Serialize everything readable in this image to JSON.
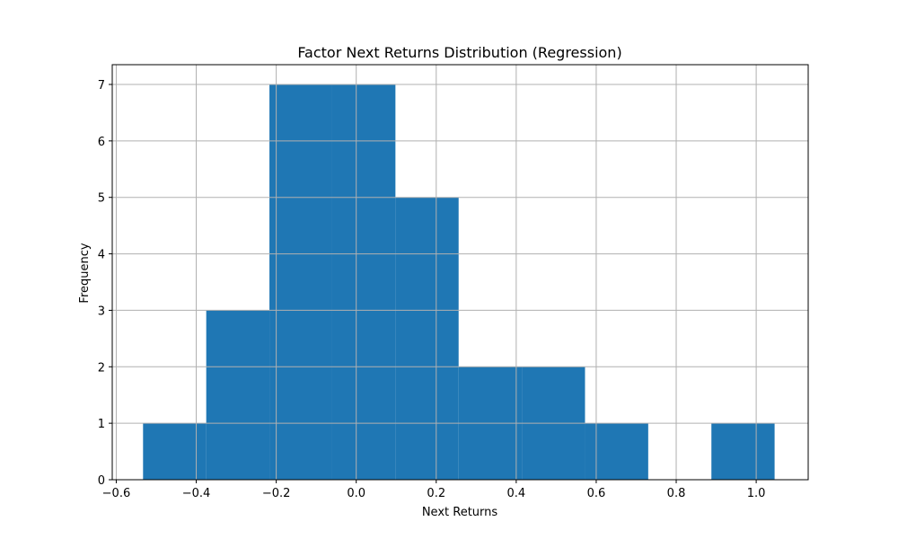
{
  "chart_data": {
    "type": "bar",
    "title": "Factor Next Returns Distribution (Regression)",
    "xlabel": "Next Returns",
    "ylabel": "Frequency",
    "xlim": [
      -0.61,
      1.13
    ],
    "ylim": [
      0,
      7.35
    ],
    "xticks": [
      -0.6,
      -0.4,
      -0.2,
      0.0,
      0.2,
      0.4,
      0.6,
      0.8,
      1.0
    ],
    "xtick_labels": [
      "−0.6",
      "−0.4",
      "−0.2",
      "0.0",
      "0.2",
      "0.4",
      "0.6",
      "0.8",
      "1.0"
    ],
    "yticks": [
      0,
      1,
      2,
      3,
      4,
      5,
      6,
      7
    ],
    "ytick_labels": [
      "0",
      "1",
      "2",
      "3",
      "4",
      "5",
      "6",
      "7"
    ],
    "grid": true,
    "bar_color": "#1f77b4",
    "bins": [
      {
        "start": -0.533,
        "end": -0.375,
        "count": 1
      },
      {
        "start": -0.375,
        "end": -0.217,
        "count": 3
      },
      {
        "start": -0.217,
        "end": -0.06,
        "count": 7
      },
      {
        "start": -0.06,
        "end": 0.098,
        "count": 7
      },
      {
        "start": 0.098,
        "end": 0.256,
        "count": 5
      },
      {
        "start": 0.256,
        "end": 0.414,
        "count": 2
      },
      {
        "start": 0.414,
        "end": 0.572,
        "count": 2
      },
      {
        "start": 0.572,
        "end": 0.73,
        "count": 1
      },
      {
        "start": 0.73,
        "end": 0.888,
        "count": 0
      },
      {
        "start": 0.888,
        "end": 1.046,
        "count": 1
      }
    ]
  }
}
